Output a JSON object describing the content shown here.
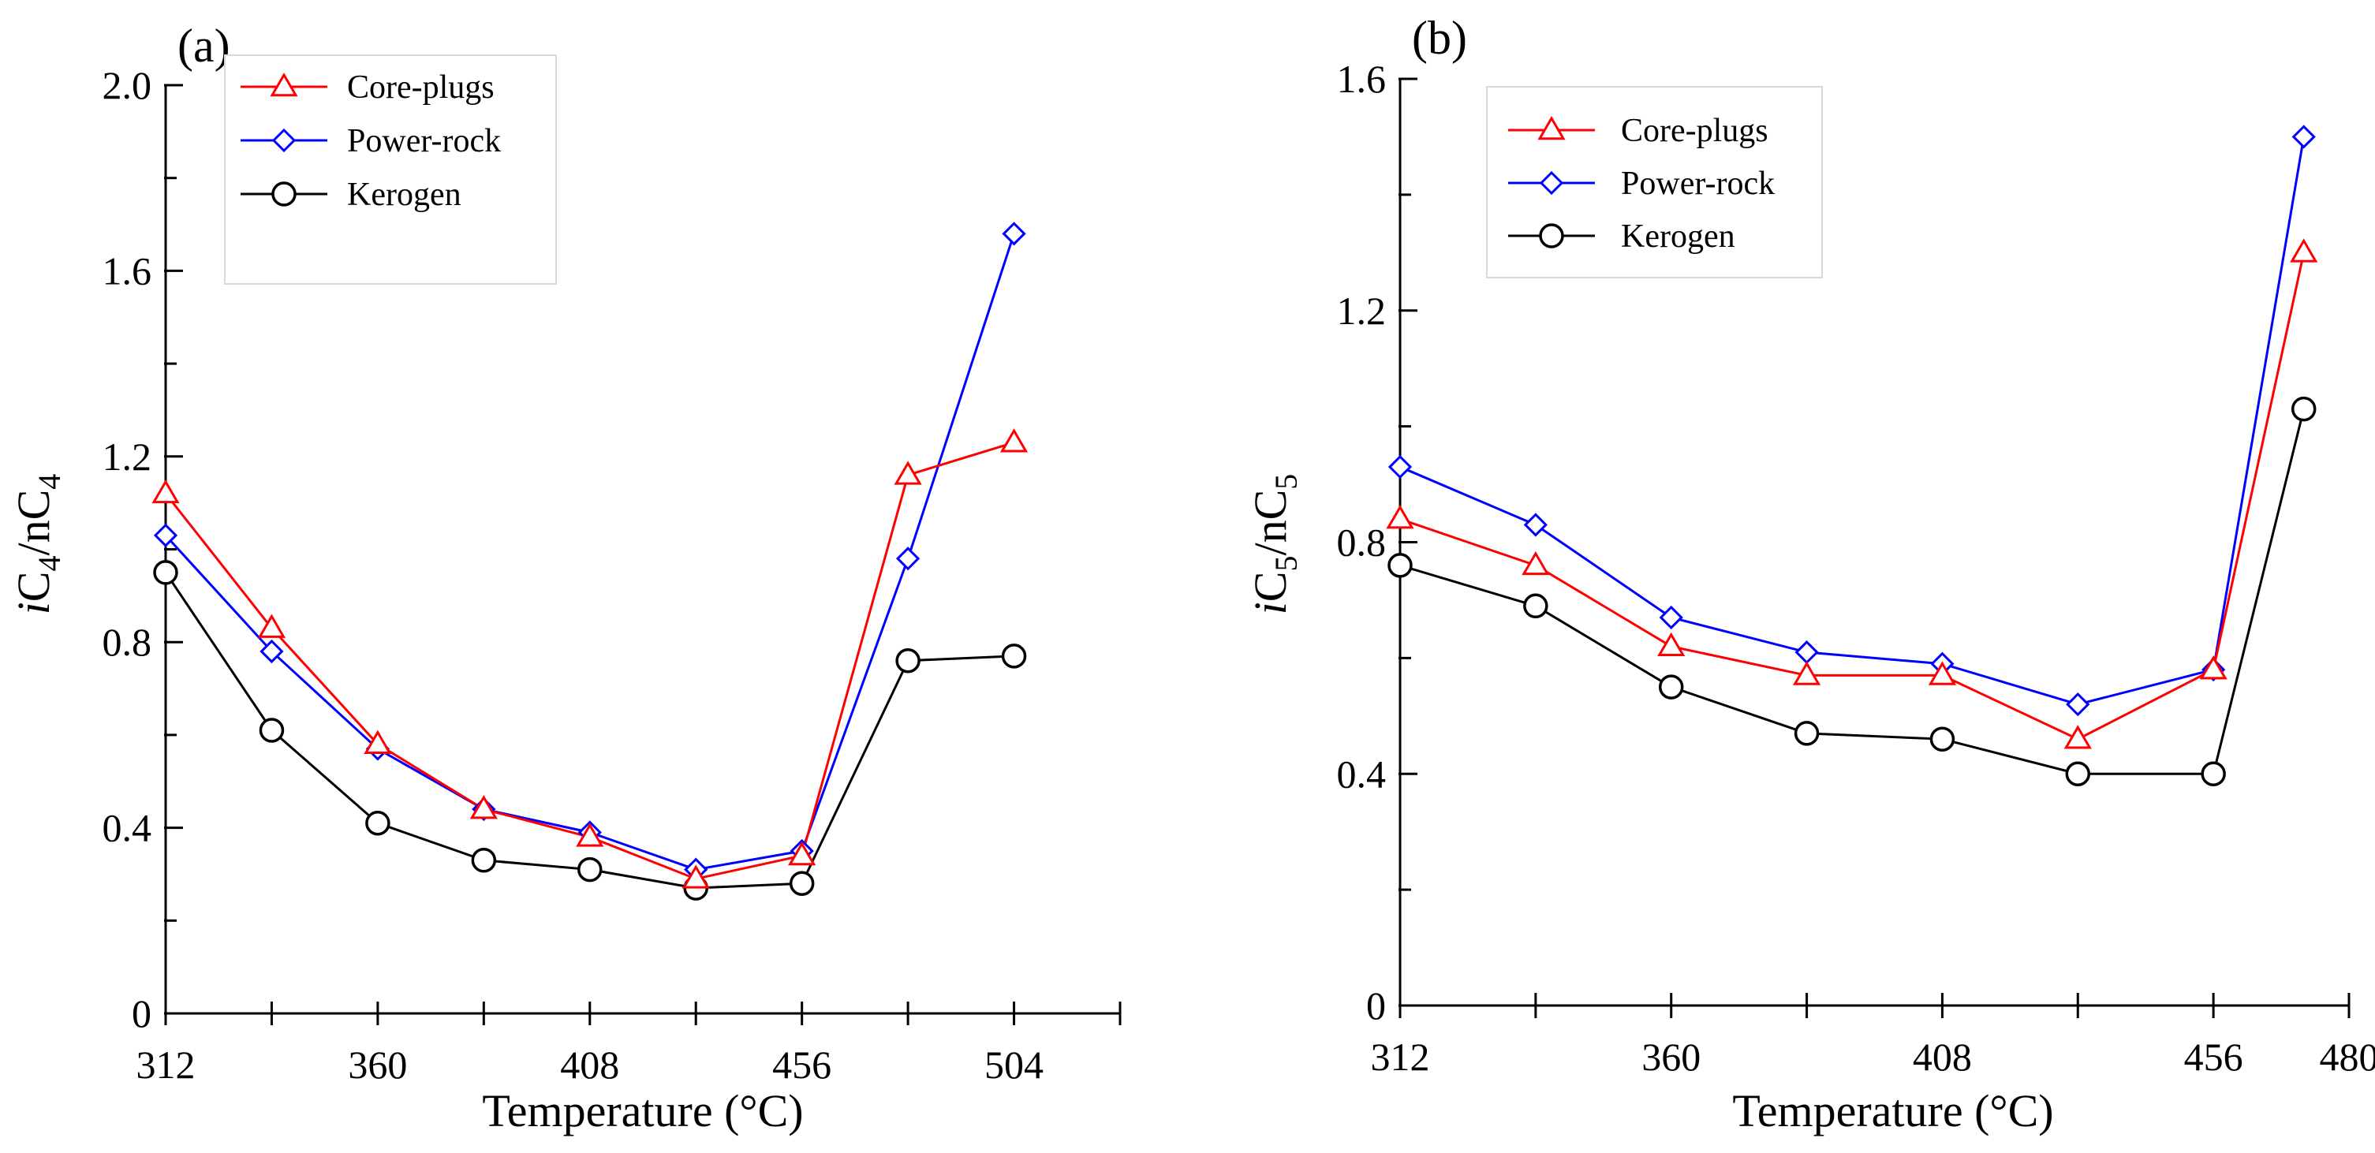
{
  "chart_data": [
    {
      "type": "line",
      "panel_label": "(a)",
      "xlabel": "Temperature (°C)",
      "ylabel": {
        "prefix": "i",
        "base1": "C",
        "sub1": "4",
        "mid": "/nC",
        "sub2": "4"
      },
      "xlim": [
        312,
        528
      ],
      "ylim": [
        0,
        2.0
      ],
      "x_ticks": [
        312,
        336,
        360,
        384,
        408,
        432,
        456,
        480,
        504,
        528
      ],
      "x_tick_labels": [
        {
          "value": 312,
          "label": "312"
        },
        {
          "value": 360,
          "label": "360"
        },
        {
          "value": 408,
          "label": "408"
        },
        {
          "value": 456,
          "label": "456"
        },
        {
          "value": 504,
          "label": "504"
        }
      ],
      "y_ticks": [
        0,
        0.2,
        0.4,
        0.6,
        0.8,
        1.0,
        1.2,
        1.4,
        1.6,
        1.8,
        2.0
      ],
      "y_tick_labels": [
        {
          "value": 0,
          "label": "0"
        },
        {
          "value": 0.4,
          "label": "0.4"
        },
        {
          "value": 0.8,
          "label": "0.8"
        },
        {
          "value": 1.2,
          "label": "1.2"
        },
        {
          "value": 1.6,
          "label": "1.6"
        },
        {
          "value": 2.0,
          "label": "2.0"
        }
      ],
      "legend_position": "top-left",
      "x": [
        312,
        336,
        360,
        384,
        408,
        432,
        456,
        480,
        504
      ],
      "series": [
        {
          "name": "Core-plugs",
          "color": "#ff0000",
          "marker": "triangle",
          "values": [
            1.12,
            0.83,
            0.58,
            0.44,
            0.38,
            0.29,
            0.34,
            1.16,
            1.23
          ]
        },
        {
          "name": "Power-rock",
          "color": "#0000ff",
          "marker": "diamond",
          "values": [
            1.03,
            0.78,
            0.57,
            0.44,
            0.39,
            0.31,
            0.35,
            0.98,
            1.68
          ]
        },
        {
          "name": "Kerogen",
          "color": "#000000",
          "marker": "circle",
          "values": [
            0.95,
            0.61,
            0.41,
            0.33,
            0.31,
            0.27,
            0.28,
            0.76,
            0.77
          ]
        }
      ]
    },
    {
      "type": "line",
      "panel_label": "(b)",
      "xlabel": "Temperature (°C)",
      "ylabel": {
        "prefix": "i",
        "base1": "C",
        "sub1": "5",
        "mid": "/nC",
        "sub2": "5"
      },
      "xlim": [
        312,
        480
      ],
      "ylim": [
        0,
        1.6
      ],
      "x_ticks": [
        312,
        336,
        360,
        384,
        408,
        432,
        456,
        480
      ],
      "x_tick_labels": [
        {
          "value": 312,
          "label": "312"
        },
        {
          "value": 360,
          "label": "360"
        },
        {
          "value": 408,
          "label": "408"
        },
        {
          "value": 456,
          "label": "456"
        },
        {
          "value": 480,
          "label": "480"
        }
      ],
      "y_ticks": [
        0,
        0.2,
        0.4,
        0.6,
        0.8,
        1.0,
        1.2,
        1.4,
        1.6
      ],
      "y_tick_labels": [
        {
          "value": 0,
          "label": "0"
        },
        {
          "value": 0.4,
          "label": "0.4"
        },
        {
          "value": 0.8,
          "label": "0.8"
        },
        {
          "value": 1.2,
          "label": "1.2"
        },
        {
          "value": 1.6,
          "label": "1.6"
        }
      ],
      "legend_position": "top-left",
      "x": [
        312,
        336,
        360,
        384,
        408,
        432,
        456,
        472
      ],
      "series": [
        {
          "name": "Core-plugs",
          "color": "#ff0000",
          "marker": "triangle",
          "values": [
            0.84,
            0.76,
            0.62,
            0.57,
            0.57,
            0.46,
            0.58,
            1.3
          ]
        },
        {
          "name": "Power-rock",
          "color": "#0000ff",
          "marker": "diamond",
          "values": [
            0.93,
            0.83,
            0.67,
            0.61,
            0.59,
            0.52,
            0.58,
            1.5
          ]
        },
        {
          "name": "Kerogen",
          "color": "#000000",
          "marker": "circle",
          "values": [
            0.76,
            0.69,
            0.55,
            0.47,
            0.46,
            0.4,
            0.4,
            1.03
          ]
        }
      ]
    }
  ]
}
